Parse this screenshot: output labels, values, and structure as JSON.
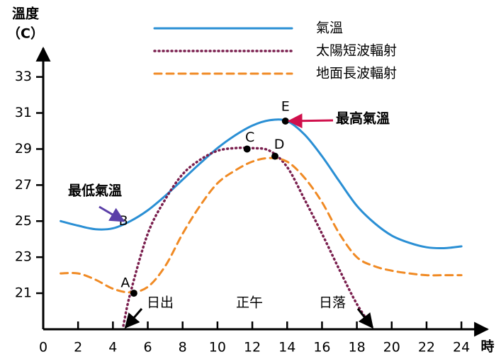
{
  "chart_data": {
    "type": "line",
    "y_label": "溫度",
    "y_unit": "（C）",
    "x_label": "時",
    "xlim": [
      0,
      25.5
    ],
    "ylim": [
      19,
      34.4
    ],
    "xticks": [
      0,
      2,
      4,
      6,
      8,
      10,
      12,
      14,
      16,
      18,
      20,
      22,
      24
    ],
    "yticks": [
      21,
      23,
      25,
      27,
      29,
      31,
      33
    ],
    "legend": "top",
    "series": [
      {
        "name": "氣溫",
        "color": "#2a8fd4",
        "style": "solid",
        "x": [
          1,
          2,
          3,
          4,
          5,
          6,
          7,
          8,
          9,
          10,
          11,
          12,
          13,
          14,
          15,
          16,
          17,
          18,
          19,
          20,
          21,
          22,
          23,
          24
        ],
        "values": [
          25.0,
          24.75,
          24.55,
          24.6,
          25.0,
          25.6,
          26.4,
          27.3,
          28.2,
          29.05,
          29.75,
          30.3,
          30.6,
          30.55,
          29.8,
          28.6,
          27.2,
          25.85,
          24.9,
          24.2,
          23.8,
          23.55,
          23.5,
          23.6
        ]
      },
      {
        "name": "太陽短波輻射",
        "color": "#7a1f4e",
        "style": "dotted",
        "x": [
          4.6,
          5,
          6,
          7,
          8,
          9,
          10,
          11,
          12,
          13,
          14,
          15,
          16,
          17,
          18,
          18.9
        ],
        "values": [
          19.2,
          21.0,
          24.3,
          26.2,
          27.6,
          28.4,
          28.9,
          29.05,
          29.05,
          28.9,
          28.0,
          26.2,
          24.3,
          22.3,
          20.4,
          19.1
        ]
      },
      {
        "name": "地面長波輻射",
        "color": "#f08a24",
        "style": "dashed",
        "x": [
          1,
          2,
          3,
          4,
          5,
          6,
          7,
          8,
          9,
          10,
          11,
          12,
          13,
          14,
          15,
          16,
          17,
          18,
          19,
          20,
          21,
          22,
          23,
          24
        ],
        "values": [
          22.1,
          22.1,
          21.75,
          21.25,
          21.05,
          21.35,
          22.5,
          24.3,
          25.85,
          27.1,
          27.8,
          28.3,
          28.5,
          28.3,
          27.4,
          26.05,
          24.3,
          23.0,
          22.5,
          22.25,
          22.1,
          22.0,
          22.0,
          22.0
        ]
      }
    ],
    "points": [
      {
        "label": "A",
        "x": 5.2,
        "y": 21.0,
        "dot": true
      },
      {
        "label": "B",
        "x": 4.6,
        "y": 25.0,
        "dot": false
      },
      {
        "label": "C",
        "x": 11.7,
        "y": 29.0,
        "dot": true
      },
      {
        "label": "D",
        "x": 13.3,
        "y": 28.6,
        "dot": true
      },
      {
        "label": "E",
        "x": 13.9,
        "y": 30.55,
        "dot": true
      }
    ],
    "annotations": [
      {
        "text": "最高氣溫",
        "color": "#d0104c",
        "x": 14.1,
        "y": 30.55
      },
      {
        "text": "最低氣溫",
        "color": "#5b3fa8",
        "x": 4.5,
        "y": 25.0
      },
      {
        "text": "日出",
        "color": "#000000",
        "x": 4.6,
        "y": 19.1
      },
      {
        "text": "正午",
        "color": "#000000"
      },
      {
        "text": "日落",
        "color": "#000000",
        "x": 18.9,
        "y": 19.1
      }
    ]
  }
}
